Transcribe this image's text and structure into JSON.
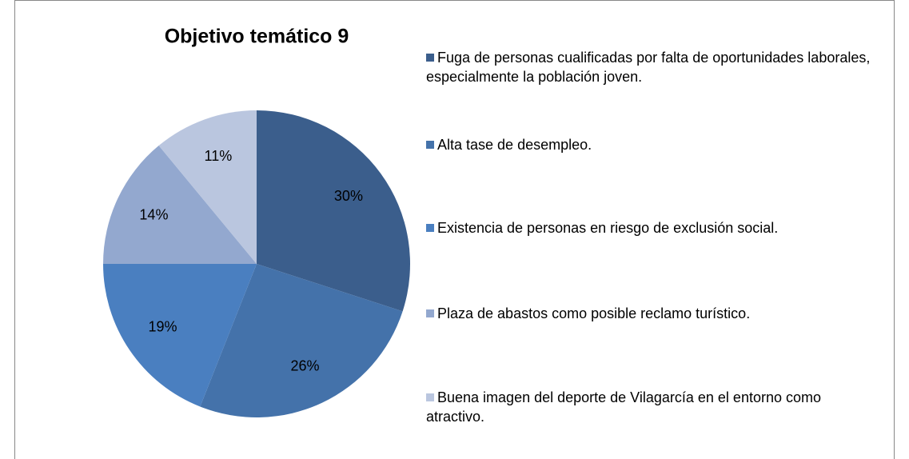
{
  "chart_data": {
    "type": "pie",
    "title": "Objetivo temático 9",
    "categories": [
      "Fuga de personas cualificadas por falta de oportunidades laborales, especialmente la población joven.",
      "Alta tase de desempleo.",
      "Existencia de personas en riesgo de exclusión social.",
      "Plaza de abastos como posible reclamo turístico.",
      "Buena imagen del deporte de Vilagarcía en el entorno como atractivo."
    ],
    "values": [
      30,
      26,
      19,
      14,
      11
    ],
    "value_labels": [
      "30%",
      "26%",
      "19%",
      "14%",
      "11%"
    ],
    "colors": [
      "#3b5e8c",
      "#4472aa",
      "#4a7fc0",
      "#93a8cf",
      "#bac6df"
    ],
    "legend": "right"
  }
}
